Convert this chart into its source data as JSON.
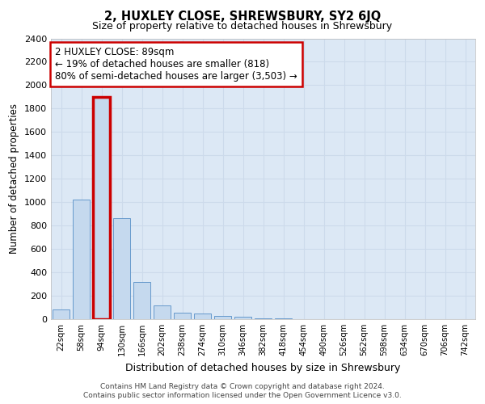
{
  "title": "2, HUXLEY CLOSE, SHREWSBURY, SY2 6JQ",
  "subtitle": "Size of property relative to detached houses in Shrewsbury",
  "xlabel": "Distribution of detached houses by size in Shrewsbury",
  "ylabel": "Number of detached properties",
  "bar_labels": [
    "22sqm",
    "58sqm",
    "94sqm",
    "130sqm",
    "166sqm",
    "202sqm",
    "238sqm",
    "274sqm",
    "310sqm",
    "346sqm",
    "382sqm",
    "418sqm",
    "454sqm",
    "490sqm",
    "526sqm",
    "562sqm",
    "598sqm",
    "634sqm",
    "670sqm",
    "706sqm",
    "742sqm"
  ],
  "bar_values": [
    80,
    1020,
    1900,
    860,
    315,
    120,
    55,
    45,
    30,
    20,
    10,
    5,
    0,
    0,
    0,
    0,
    0,
    0,
    0,
    0,
    0
  ],
  "highlight_index": 2,
  "highlight_color": "#cc0000",
  "bar_color": "#c5d9ee",
  "bar_edge_color": "#6699cc",
  "annotation_text": "2 HUXLEY CLOSE: 89sqm\n← 19% of detached houses are smaller (818)\n80% of semi-detached houses are larger (3,503) →",
  "annotation_box_edge": "#cc0000",
  "ylim": [
    0,
    2400
  ],
  "yticks": [
    0,
    200,
    400,
    600,
    800,
    1000,
    1200,
    1400,
    1600,
    1800,
    2000,
    2200,
    2400
  ],
  "grid_color": "#ccdaeb",
  "background_color": "#dce8f5",
  "footer_line1": "Contains HM Land Registry data © Crown copyright and database right 2024.",
  "footer_line2": "Contains public sector information licensed under the Open Government Licence v3.0."
}
